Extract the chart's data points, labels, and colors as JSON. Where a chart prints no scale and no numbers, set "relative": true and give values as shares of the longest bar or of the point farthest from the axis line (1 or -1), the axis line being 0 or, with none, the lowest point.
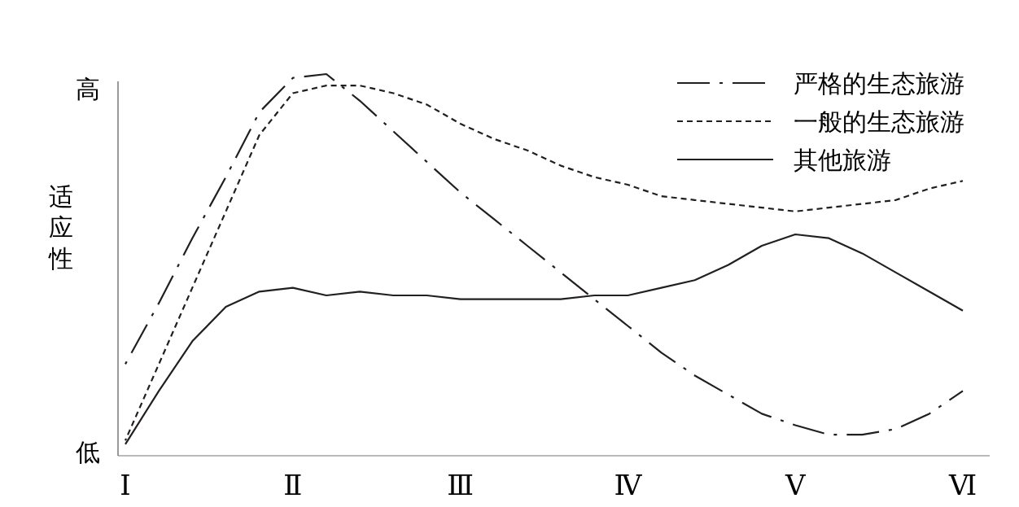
{
  "chart_data": {
    "type": "line",
    "ylabel": "适应性",
    "annotations": [
      "高",
      "低"
    ],
    "relative": true,
    "legend": "top right",
    "categories": [
      "Ⅰ",
      null,
      null,
      null,
      null,
      "Ⅱ",
      null,
      null,
      null,
      null,
      "Ⅲ",
      null,
      null,
      null,
      null,
      "Ⅳ",
      null,
      null,
      null,
      null,
      "Ⅴ",
      null,
      null,
      null,
      null,
      "Ⅵ"
    ],
    "series": [
      {
        "name": "严格的生态旅游",
        "color": "#231f20",
        "line_style": "dashdot",
        "values": [
          0.24,
          0.4,
          0.57,
          0.73,
          0.9,
          0.99,
          1,
          0.93,
          0.85,
          0.77,
          0.69,
          0.62,
          0.55,
          0.48,
          0.41,
          0.34,
          0.27,
          0.21,
          0.16,
          0.11,
          0.08,
          0.055,
          0.055,
          0.07,
          0.11,
          0.17
        ]
      },
      {
        "name": "一般的生态旅游",
        "color": "#231f20",
        "line_style": "dashed",
        "values": [
          0.04,
          0.24,
          0.44,
          0.64,
          0.84,
          0.95,
          0.97,
          0.97,
          0.95,
          0.92,
          0.87,
          0.83,
          0.8,
          0.76,
          0.73,
          0.71,
          0.68,
          0.67,
          0.66,
          0.65,
          0.64,
          0.65,
          0.66,
          0.67,
          0.7,
          0.72
        ]
      },
      {
        "name": "其他旅游",
        "color": "#231f20",
        "line_style": "solid",
        "values": [
          0.03,
          0.17,
          0.3,
          0.39,
          0.43,
          0.44,
          0.42,
          0.43,
          0.42,
          0.42,
          0.41,
          0.41,
          0.41,
          0.41,
          0.42,
          0.42,
          0.44,
          0.46,
          0.5,
          0.55,
          0.58,
          0.57,
          0.53,
          0.48,
          0.43,
          0.38
        ]
      }
    ]
  }
}
